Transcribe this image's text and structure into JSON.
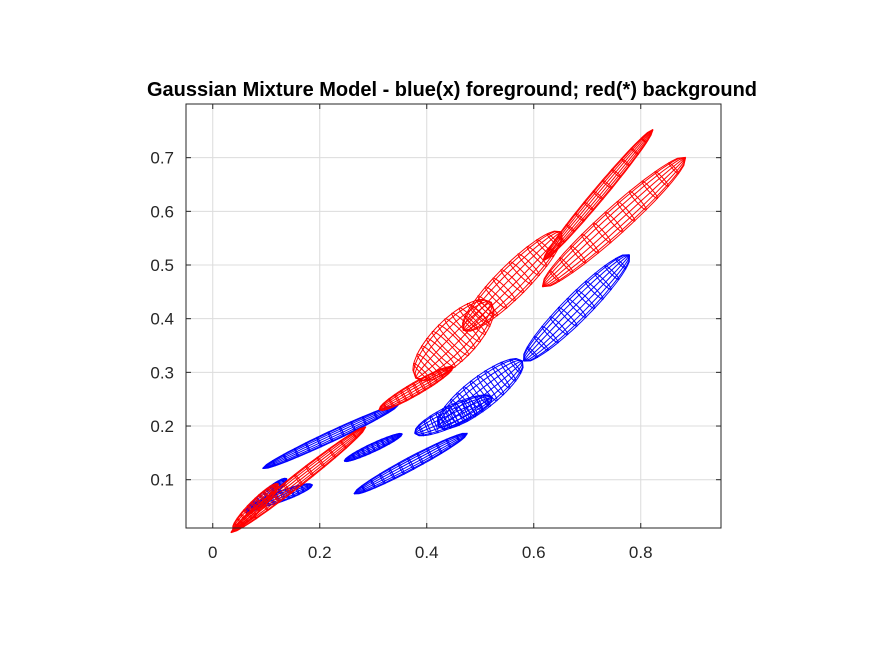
{
  "chart_data": {
    "type": "scatter",
    "title": "Gaussian Mixture Model - blue(x) foreground; red(*) background",
    "xlabel": "",
    "ylabel": "",
    "xlim": [
      -0.05,
      0.95
    ],
    "ylim": [
      0.01,
      0.8
    ],
    "xticks": [
      0,
      0.2,
      0.4,
      0.6,
      0.8
    ],
    "xtick_labels": [
      "0",
      "0.2",
      "0.4",
      "0.6",
      "0.8"
    ],
    "yticks": [
      0.1,
      0.2,
      0.3,
      0.4,
      0.5,
      0.6,
      0.7
    ],
    "ytick_labels": [
      "0.1",
      "0.2",
      "0.3",
      "0.4",
      "0.5",
      "0.6",
      "0.7"
    ],
    "grid": true,
    "legend": "none",
    "colors": {
      "foreground": "#0000ff",
      "background": "#ff0000"
    },
    "series": [
      {
        "color": "#0000ff",
        "ellipsoids": [
          {
            "center": [
              0.68,
              0.42
            ],
            "halfLength": 0.14,
            "halfWidth": 0.025,
            "angle": 45
          },
          {
            "center": [
              0.5,
              0.26
            ],
            "halfLength": 0.1,
            "halfWidth": 0.03,
            "angle": 38
          },
          {
            "center": [
              0.45,
              0.22
            ],
            "halfLength": 0.08,
            "halfWidth": 0.02,
            "angle": 25
          },
          {
            "center": [
              0.37,
              0.13
            ],
            "halfLength": 0.12,
            "halfWidth": 0.012,
            "angle": 28
          },
          {
            "center": [
              0.3,
              0.16
            ],
            "halfLength": 0.06,
            "halfWidth": 0.008,
            "angle": 25
          },
          {
            "center": [
              0.22,
              0.18
            ],
            "halfLength": 0.14,
            "halfWidth": 0.01,
            "angle": 25
          },
          {
            "center": [
              0.13,
              0.07
            ],
            "halfLength": 0.06,
            "halfWidth": 0.01,
            "angle": 20
          },
          {
            "center": [
              0.1,
              0.07
            ],
            "halfLength": 0.05,
            "halfWidth": 0.01,
            "angle": 40
          }
        ]
      },
      {
        "color": "#ff0000",
        "ellipsoids": [
          {
            "center": [
              0.72,
              0.63
            ],
            "halfLength": 0.16,
            "halfWidth": 0.012,
            "angle": 50
          },
          {
            "center": [
              0.75,
              0.58
            ],
            "halfLength": 0.18,
            "halfWidth": 0.025,
            "angle": 42
          },
          {
            "center": [
              0.56,
              0.47
            ],
            "halfLength": 0.13,
            "halfWidth": 0.03,
            "angle": 45
          },
          {
            "center": [
              0.45,
              0.36
            ],
            "halfLength": 0.1,
            "halfWidth": 0.04,
            "angle": 45
          },
          {
            "center": [
              0.38,
              0.27
            ],
            "halfLength": 0.08,
            "halfWidth": 0.012,
            "angle": 30
          },
          {
            "center": [
              0.16,
              0.1
            ],
            "halfLength": 0.16,
            "halfWidth": 0.012,
            "angle": 38
          },
          {
            "center": [
              0.08,
              0.05
            ],
            "halfLength": 0.06,
            "halfWidth": 0.012,
            "angle": 45
          }
        ]
      }
    ]
  }
}
